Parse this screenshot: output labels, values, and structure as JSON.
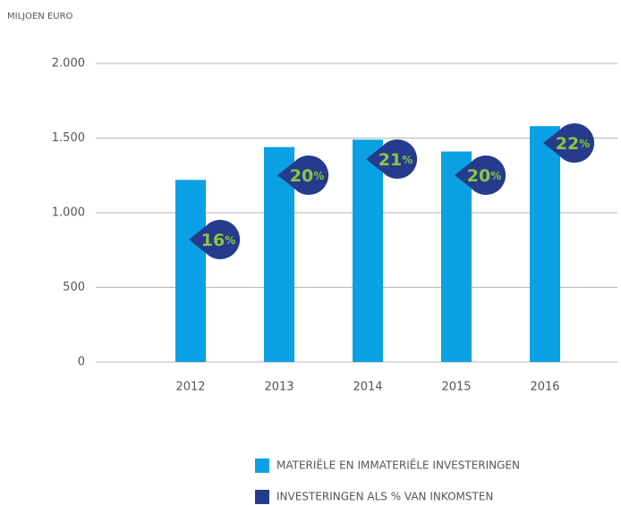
{
  "chart_data": {
    "type": "bar",
    "y_label": "MILJOEN EURO",
    "categories": [
      "2012",
      "2013",
      "2014",
      "2015",
      "2016"
    ],
    "series": [
      {
        "name": "MATERIËLE EN IMMATERIËLE INVESTERINGEN",
        "color": "#0aa0e4",
        "values": [
          1220,
          1440,
          1490,
          1410,
          1580
        ]
      },
      {
        "name": "INVESTERINGEN ALS % VAN INKOMSTEN",
        "color": "#263b8c",
        "values": [
          16,
          20,
          21,
          20,
          22
        ],
        "value_labels": [
          "16%",
          "20%",
          "21%",
          "20%",
          "22%"
        ]
      }
    ],
    "ylim": [
      0,
      2000
    ],
    "yticks": [
      0,
      500,
      {
        "value": 1000,
        "label": "1.000"
      },
      {
        "value": 1500,
        "label": "1.500"
      },
      {
        "value": 2000,
        "label": "2.000"
      }
    ],
    "grid": true
  }
}
